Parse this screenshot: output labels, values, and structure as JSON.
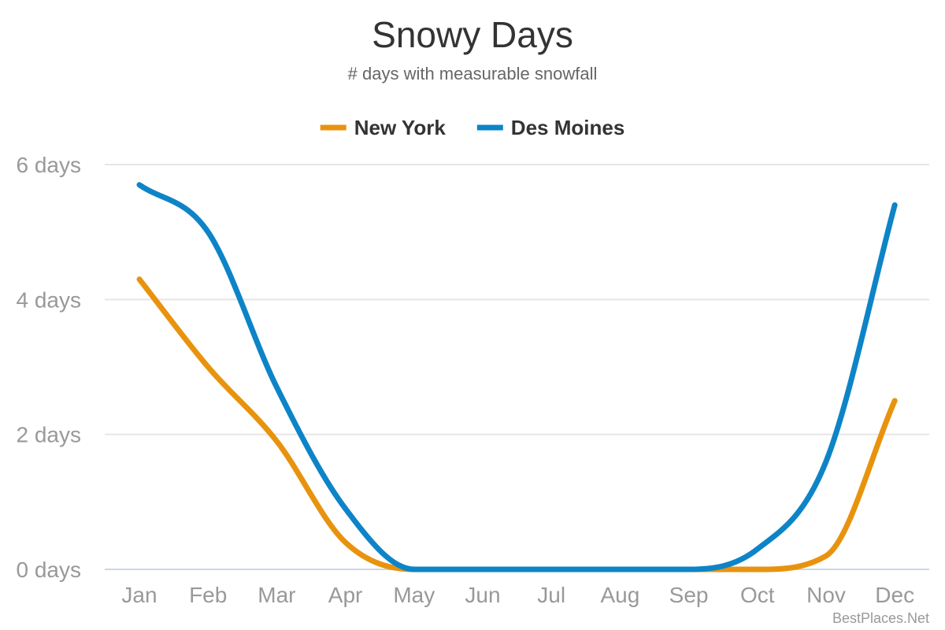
{
  "chart_data": {
    "type": "line",
    "title": "Snowy Days",
    "subtitle": "# days with measurable snowfall",
    "categories": [
      "Jan",
      "Feb",
      "Mar",
      "Apr",
      "May",
      "Jun",
      "Jul",
      "Aug",
      "Sep",
      "Oct",
      "Nov",
      "Dec"
    ],
    "series": [
      {
        "name": "New York",
        "color": "#e8930e",
        "values": [
          4.3,
          3.0,
          1.9,
          0.4,
          0.0,
          0.0,
          0.0,
          0.0,
          0.0,
          0.0,
          0.2,
          2.5
        ]
      },
      {
        "name": "Des Moines",
        "color": "#0d84c7",
        "values": [
          5.7,
          5.0,
          2.7,
          0.9,
          0.0,
          0.0,
          0.0,
          0.0,
          0.0,
          0.3,
          1.6,
          5.4
        ]
      }
    ],
    "ylim": [
      0,
      6
    ],
    "yticks": [
      0,
      2,
      4,
      6
    ],
    "ytick_labels": [
      "0 days",
      "2 days",
      "4 days",
      "6 days"
    ],
    "legend_position": "top-center",
    "grid": true
  },
  "credits": "BestPlaces.Net"
}
